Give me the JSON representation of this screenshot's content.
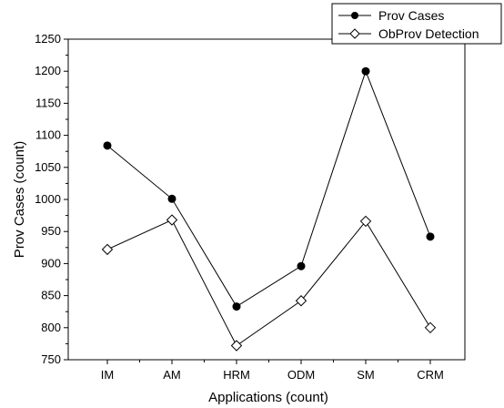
{
  "chart_data": {
    "type": "line",
    "title": "",
    "xlabel": "Applications (count)",
    "ylabel": "Prov Cases (count)",
    "categories": [
      "IM",
      "AM",
      "HRM",
      "ODM",
      "SM",
      "CRM"
    ],
    "ylim": [
      750,
      1250
    ],
    "yticks": [
      750,
      800,
      850,
      900,
      950,
      1000,
      1050,
      1100,
      1150,
      1200,
      1250
    ],
    "grid": false,
    "legend_position": "top-right",
    "series": [
      {
        "name": "Prov Cases",
        "marker": "filled-circle",
        "color": "#000000",
        "values": [
          1084,
          1001,
          833,
          896,
          1200,
          942
        ]
      },
      {
        "name": "ObProv Detection",
        "marker": "hollow-diamond",
        "color": "#000000",
        "values": [
          922,
          968,
          772,
          842,
          966,
          800
        ]
      }
    ]
  }
}
